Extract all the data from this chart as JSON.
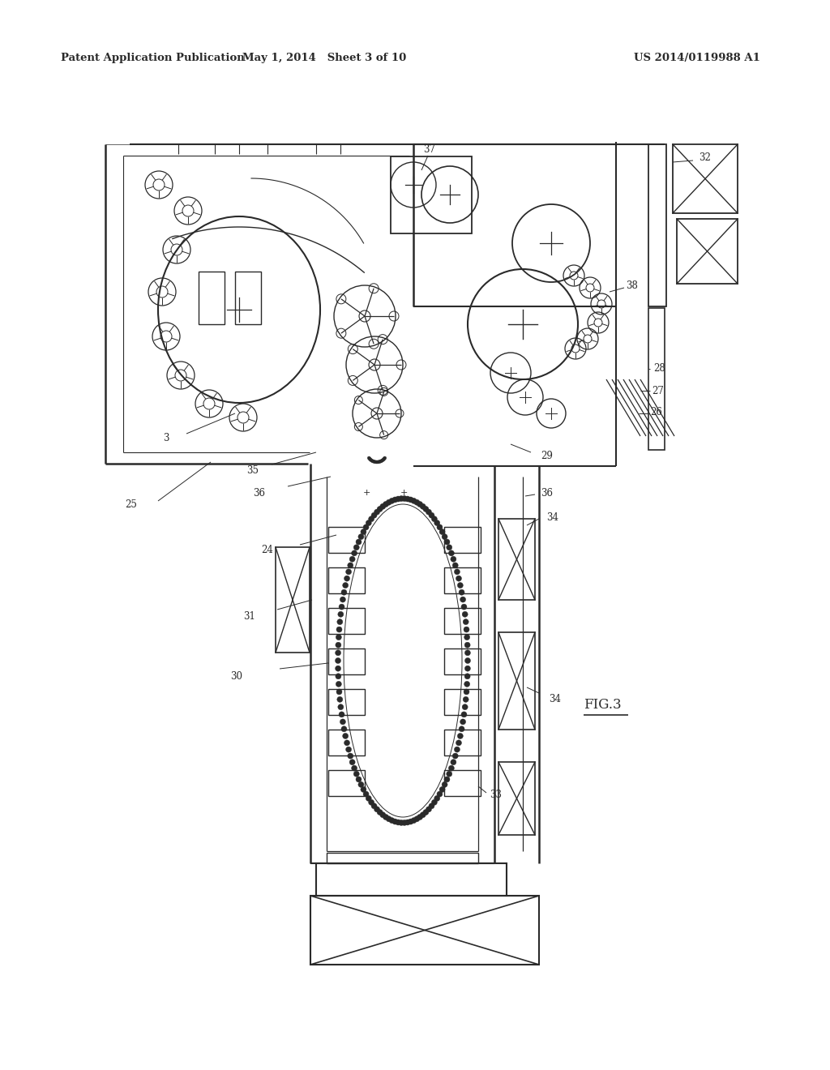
{
  "header_left": "Patent Application Publication",
  "header_mid": "May 1, 2014   Sheet 3 of 10",
  "header_right": "US 2014/0119988 A1",
  "fig_label": "FIG.3",
  "background_color": "#ffffff",
  "line_color": "#2a2a2a"
}
